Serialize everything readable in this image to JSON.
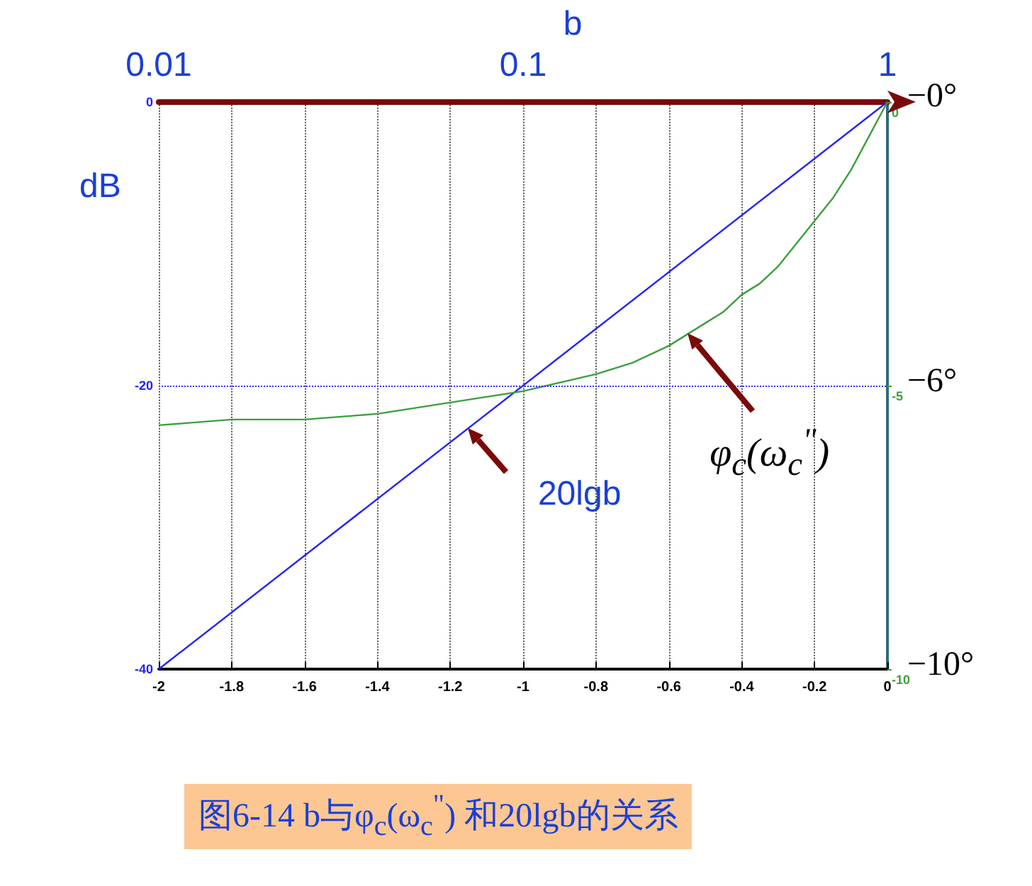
{
  "chart_data": {
    "type": "line",
    "title": "图6-14  b与φ$_{c}$(ω$_{c}$$^{\"}$) 和20lgb的关系",
    "ylabel": "dB",
    "x2label": "b",
    "xlim": [
      -2,
      0
    ],
    "xticks": [
      -2,
      -1.8,
      -1.6,
      -1.4,
      -1.2,
      -1,
      -0.8,
      -0.6,
      -0.4,
      -0.2,
      0
    ],
    "x2lim": [
      0.01,
      1
    ],
    "x2ticks": [
      0.01,
      0.1,
      1
    ],
    "log": "x2",
    "ylim": [
      -40,
      0
    ],
    "yticks": [
      -40,
      -20,
      0
    ],
    "y2lim": [
      -10,
      0
    ],
    "y2ticks": [
      -10,
      -5,
      0
    ],
    "grid": "x",
    "marker": "none",
    "ref_lines": [
      {
        "axis": "y",
        "value": -20,
        "color": "#3333ff",
        "line_style": "dotted"
      }
    ],
    "series": [
      {
        "color": "#2222ff",
        "x": [
          -2,
          0
        ],
        "values": [
          -40,
          0
        ]
      },
      {
        "color": "#3c9f3c",
        "axis": "y2",
        "x": [
          -2,
          -1.8,
          -1.6,
          -1.4,
          -1.2,
          -1,
          -0.8,
          -0.7,
          -0.6,
          -0.5,
          -0.45,
          -0.4,
          -0.35,
          -0.3,
          -0.25,
          -0.2,
          -0.15,
          -0.1,
          -0.05,
          0
        ],
        "values": [
          -5.7,
          -5.6,
          -5.6,
          -5.5,
          -5.3,
          -5.1,
          -4.8,
          -4.6,
          -4.3,
          -3.9,
          -3.7,
          -3.4,
          -3.2,
          -2.9,
          -2.5,
          -2.1,
          -1.7,
          -1.2,
          -0.6,
          0
        ]
      }
    ],
    "annotations": [
      {
        "text": "20lgb",
        "x": -1.15,
        "y": -23
      },
      {
        "text": "φ$_{c}$(ω$_{c}$$^{\"}$)",
        "x": -0.55,
        "y": -16.3
      },
      "−0°",
      "−6°",
      "−10°"
    ]
  }
}
